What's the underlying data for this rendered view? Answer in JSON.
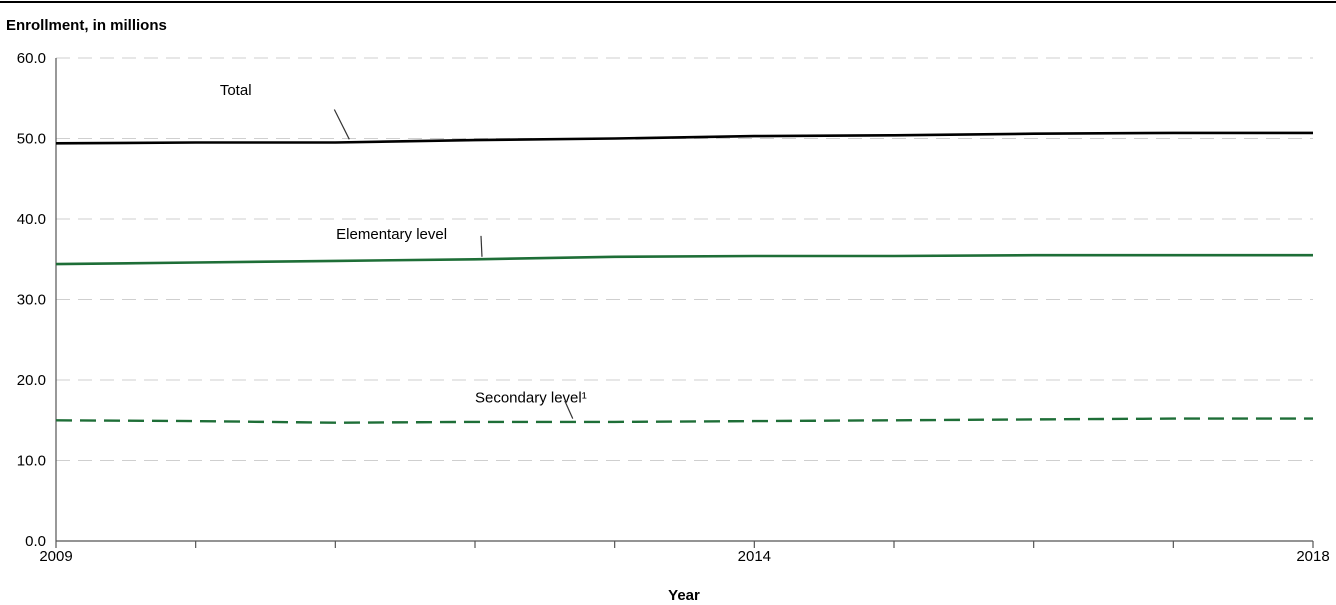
{
  "chart_data": {
    "type": "line",
    "title": "",
    "ylabel": "Enrollment, in millions",
    "xlabel": "Year",
    "x": [
      2009,
      2010,
      2011,
      2012,
      2013,
      2014,
      2015,
      2016,
      2017,
      2018
    ],
    "xtick_labels": [
      "2009",
      "",
      "",
      "",
      "",
      "2014",
      "",
      "",
      "",
      "2018"
    ],
    "ylim": [
      0,
      60
    ],
    "yticks": [
      "0.0",
      "10.0",
      "20.0",
      "30.0",
      "40.0",
      "50.0",
      "60.0"
    ],
    "grid": true,
    "series": [
      {
        "name": "Total",
        "values": [
          49.4,
          49.5,
          49.5,
          49.8,
          50.0,
          50.3,
          50.4,
          50.6,
          50.7,
          50.7
        ],
        "color": "#000000",
        "style": "solid"
      },
      {
        "name": "Elementary level",
        "values": [
          34.4,
          34.6,
          34.8,
          35.0,
          35.3,
          35.4,
          35.4,
          35.5,
          35.5,
          35.5
        ],
        "color": "#1e6e37",
        "style": "solid"
      },
      {
        "name": "Secondary level¹",
        "values": [
          15.0,
          14.9,
          14.7,
          14.8,
          14.8,
          14.9,
          15.0,
          15.1,
          15.2,
          15.2
        ],
        "color": "#1e6e37",
        "style": "dashed"
      }
    ]
  }
}
